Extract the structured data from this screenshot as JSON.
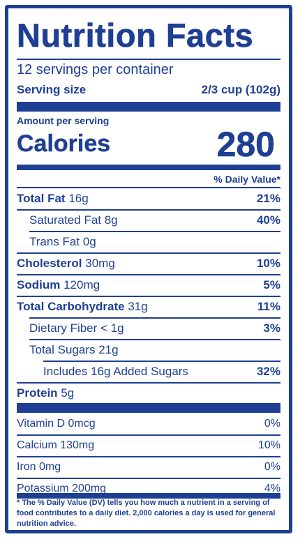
{
  "title": "Nutrition Facts",
  "servings": "12 servings per container",
  "serving_size_label": "Serving size",
  "serving_size_value": "2/3 cup (102g)",
  "amount_per_serving": "Amount per serving",
  "calories_label": "Calories",
  "calories_value": "280",
  "daily_value_header": "% Daily Value*",
  "nutrients": [
    {
      "bold": "Total Fat",
      "amount": "16g",
      "dv": "21%"
    },
    {
      "label": "Saturated Fat 8g",
      "dv": "40%"
    },
    {
      "label": "Trans Fat 0g",
      "dv": ""
    },
    {
      "bold": "Cholesterol",
      "amount": "30mg",
      "dv": "10%"
    },
    {
      "bold": "Sodium",
      "amount": "120mg",
      "dv": "5%"
    },
    {
      "bold": "Total Carbohydrate",
      "amount": "31g",
      "dv": "11%"
    },
    {
      "label": "Dietary Fiber < 1g",
      "dv": "3%"
    },
    {
      "label": "Total Sugars 21g",
      "dv": ""
    },
    {
      "label": "Includes 16g Added Sugars",
      "dv": "32%"
    },
    {
      "bold": "Protein",
      "amount": "5g",
      "dv": ""
    }
  ],
  "vitamins": [
    {
      "label": "Vitamin D 0mcg",
      "dv": "0%"
    },
    {
      "label": "Calcium 130mg",
      "dv": "10%"
    },
    {
      "label": "Iron 0mg",
      "dv": "0%"
    },
    {
      "label": "Potassium 200mg",
      "dv": "4%"
    }
  ],
  "footnote": "* The % Daily Value (DV) tells you how much a nutrient in a serving of food contributes to a daily diet. 2,000 calories a day is used for general nutrition advice.",
  "colors": {
    "ink": "#1f3f94",
    "background": "#ffffff"
  }
}
